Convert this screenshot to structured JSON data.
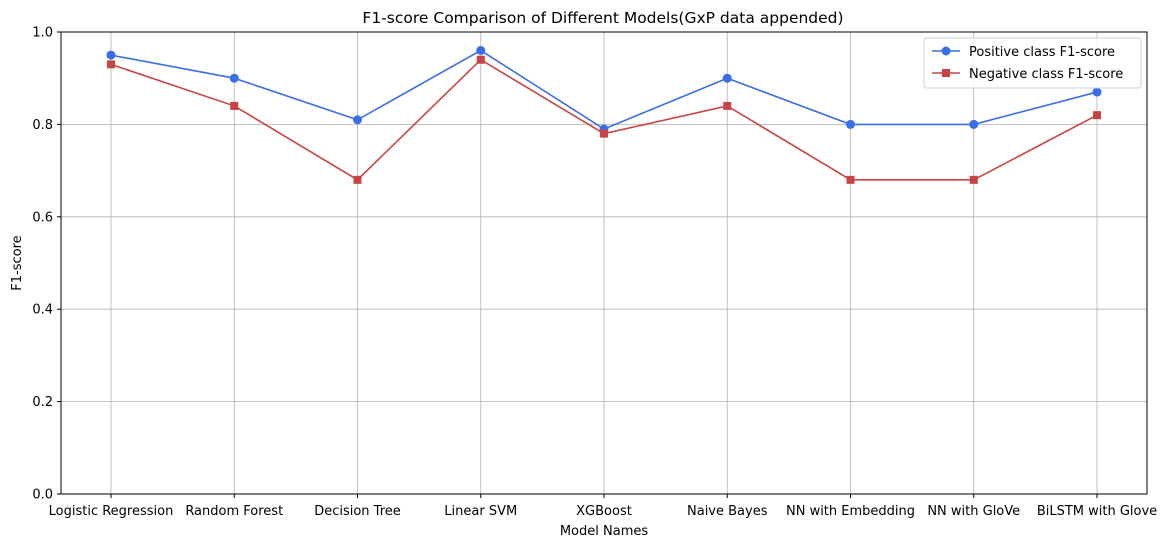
{
  "chart_data": {
    "type": "line",
    "title": "F1-score Comparison of Different Models(GxP data appended)",
    "xlabel": "Model Names",
    "ylabel": "F1-score",
    "ylim": [
      0,
      1.0
    ],
    "yticks": [
      "0.0",
      "0.2",
      "0.4",
      "0.6",
      "0.8",
      "1.0"
    ],
    "grid": true,
    "legend_position": "top-right",
    "categories": [
      "Logistic Regression",
      "Random Forest",
      "Decision Tree",
      "Linear SVM",
      "XGBoost",
      "Naive Bayes",
      "NN with Embedding",
      "NN with GloVe",
      "BiLSTM with Glove"
    ],
    "series": [
      {
        "name": "Positive class F1-score",
        "color": "#3a6ee8",
        "marker": "circle",
        "values": [
          0.95,
          0.9,
          0.81,
          0.96,
          0.79,
          0.9,
          0.8,
          0.8,
          0.87
        ]
      },
      {
        "name": "Negative class F1-score",
        "color": "#c84444",
        "marker": "square",
        "values": [
          0.93,
          0.84,
          0.68,
          0.94,
          0.78,
          0.84,
          0.68,
          0.68,
          0.82
        ]
      }
    ]
  }
}
